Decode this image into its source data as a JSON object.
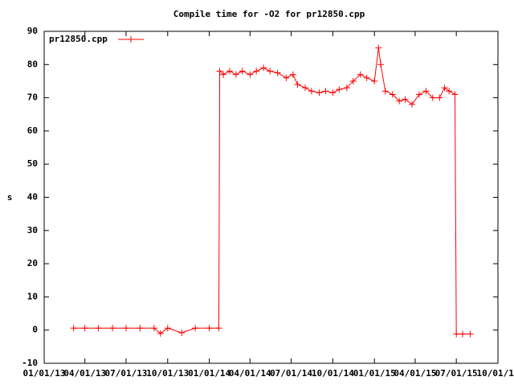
{
  "chart_data": {
    "type": "line",
    "title": "Compile time for -O2 for pr12850.cpp",
    "y_label": "s",
    "x": [
      "03/07/13",
      "04/01/13",
      "05/01/13",
      "06/01/13",
      "07/01/13",
      "08/01/13",
      "09/01/13",
      "09/15/13",
      "10/01/13",
      "11/01/13",
      "12/01/13",
      "01/01/14",
      "01/22/14",
      "01/24/14",
      "02/01/14",
      "02/15/14",
      "03/01/14",
      "03/15/14",
      "04/01/14",
      "04/15/14",
      "05/01/14",
      "05/15/14",
      "06/01/14",
      "06/20/14",
      "07/05/14",
      "07/15/14",
      "08/01/14",
      "08/15/14",
      "09/01/14",
      "09/15/14",
      "10/01/14",
      "10/15/14",
      "11/01/14",
      "11/15/14",
      "12/01/14",
      "12/15/14",
      "01/01/15",
      "01/10/15",
      "01/15/15",
      "01/25/15",
      "02/10/15",
      "02/25/15",
      "03/10/15",
      "03/25/15",
      "04/10/15",
      "04/25/15",
      "05/10/15",
      "05/25/15",
      "06/05/15",
      "06/15/15",
      "06/28/15",
      "07/01/15",
      "07/15/15",
      "08/01/15"
    ],
    "series": [
      {
        "name": "pr12850.cpp",
        "color": "#ff0000",
        "values": [
          0.6,
          0.6,
          0.6,
          0.6,
          0.6,
          0.6,
          0.6,
          -1.0,
          0.6,
          -0.8,
          0.6,
          0.6,
          0.6,
          78,
          77,
          78,
          77,
          78,
          77,
          78,
          79,
          78,
          77.5,
          76,
          77,
          74,
          73,
          72,
          71.5,
          72,
          71.5,
          72.5,
          73,
          75,
          77,
          76,
          75,
          85,
          80,
          72,
          71,
          69,
          69.5,
          68,
          71,
          72,
          70,
          70,
          73,
          72,
          71,
          -1.2,
          -1.2,
          -1.2
        ]
      }
    ],
    "xlim": [
      "01/01/13",
      "10/01/15"
    ],
    "xticks": [
      "01/01/13",
      "04/01/13",
      "07/01/13",
      "10/01/13",
      "01/01/14",
      "04/01/14",
      "07/01/14",
      "10/01/14",
      "01/01/15",
      "04/01/15",
      "07/01/15",
      "10/01/15"
    ],
    "ylim": [
      -10,
      90
    ],
    "yticks": [
      -10,
      0,
      10,
      20,
      30,
      40,
      50,
      60,
      70,
      80,
      90
    ],
    "legend": "top-left",
    "grid": false
  }
}
